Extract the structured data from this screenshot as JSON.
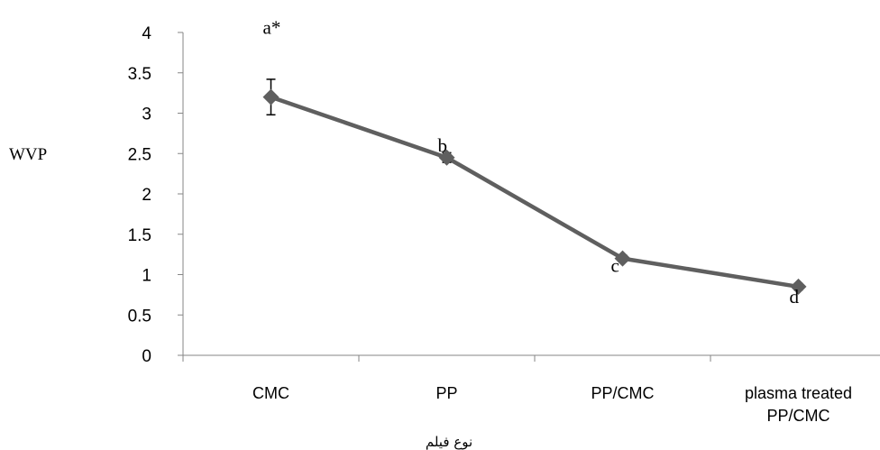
{
  "chart_data": {
    "type": "line",
    "categories": [
      "CMC",
      "PP",
      "PP/CMC",
      "plasma treated PP/CMC"
    ],
    "category_lines": [
      [
        "CMC"
      ],
      [
        "PP"
      ],
      [
        "PP/CMC"
      ],
      [
        "plasma treated",
        "PP/CMC"
      ]
    ],
    "series": [
      {
        "values": [
          3.2,
          2.45,
          1.2,
          0.85
        ],
        "error": [
          0.22,
          0.06,
          0.04,
          0.04
        ],
        "point_labels": [
          "a*",
          "b",
          "c",
          "d"
        ],
        "color": "#5f5f5f"
      }
    ],
    "ylabel": "WVP",
    "xlabel": "نوع فیلم",
    "ylim": [
      0,
      4
    ],
    "yticks": [
      "0",
      "0.5",
      "1",
      "1.5",
      "2",
      "2.5",
      "3",
      "3.5",
      "4"
    ],
    "grid": false,
    "axis_color": "#868686"
  }
}
